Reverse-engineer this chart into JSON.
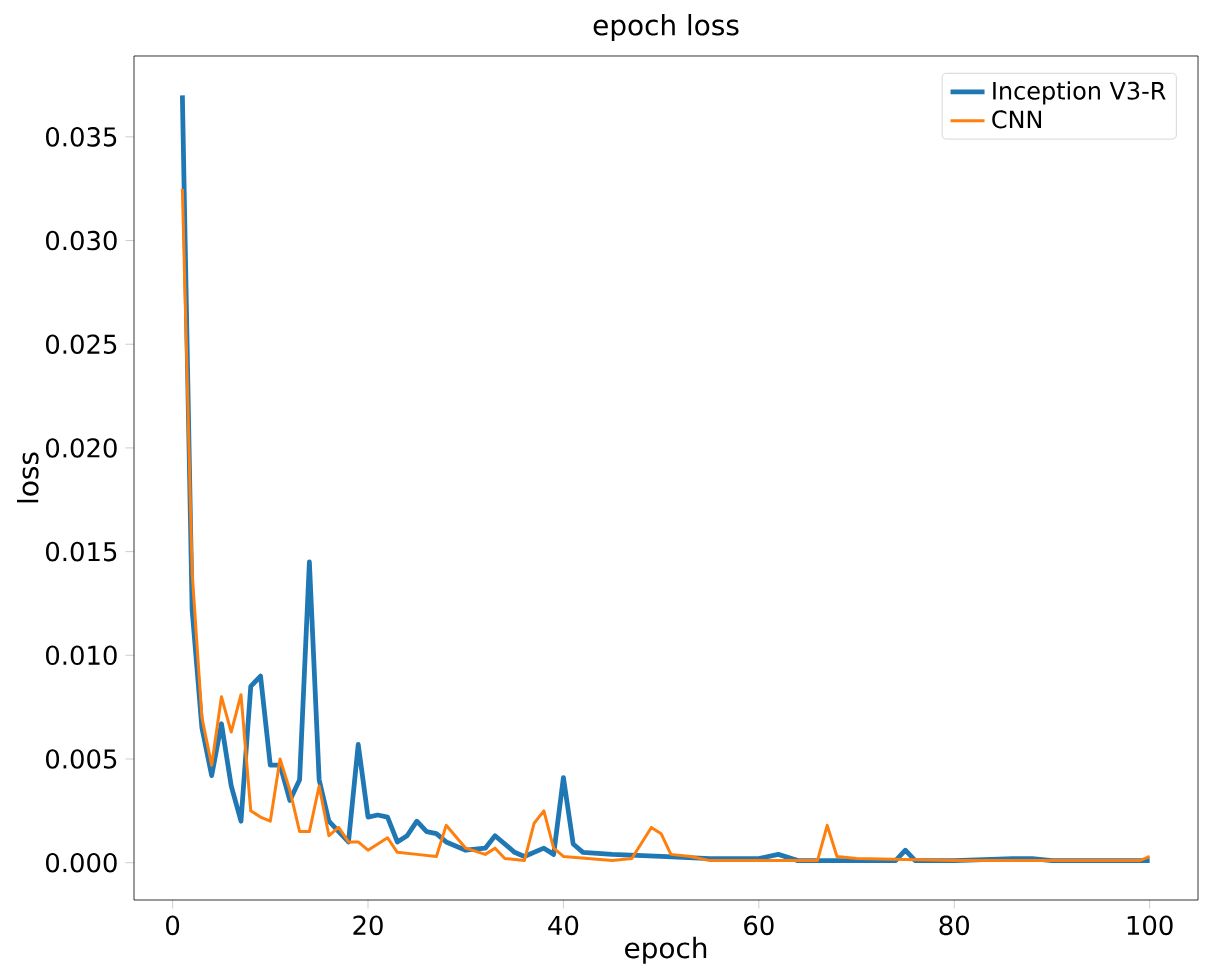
{
  "chart_data": {
    "type": "line",
    "title": "epoch loss",
    "xlabel": "epoch",
    "ylabel": "loss",
    "legend": "top right",
    "xlim": [
      -3.95,
      104.95
    ],
    "ylim": [
      -0.0018,
      0.0389
    ],
    "xticks": [
      0,
      20,
      40,
      60,
      80,
      100
    ],
    "yticks": [
      {
        "value": 0,
        "label": "0.000"
      },
      {
        "value": 0.005,
        "label": "0.005"
      },
      {
        "value": 0.01,
        "label": "0.010"
      },
      {
        "value": 0.015,
        "label": "0.015"
      },
      {
        "value": 0.02,
        "label": "0.020"
      },
      {
        "value": 0.025,
        "label": "0.025"
      },
      {
        "value": 0.03,
        "label": "0.030"
      },
      {
        "value": 0.035,
        "label": "0.035"
      }
    ],
    "series": [
      {
        "name": "Inception V3-R",
        "color": "#1f77b4",
        "x": [
          1,
          2,
          3,
          4,
          5,
          6,
          7,
          8,
          9,
          10,
          11,
          12,
          13,
          14,
          15,
          16,
          17,
          18,
          19,
          20,
          21,
          22,
          23,
          24,
          25,
          26,
          27,
          28,
          30,
          32,
          33,
          35,
          36,
          38,
          39,
          40,
          41,
          42,
          45,
          50,
          55,
          60,
          62,
          64,
          67,
          70,
          74,
          75,
          76,
          80,
          86,
          88,
          90,
          95,
          100
        ],
        "values": [
          0.037,
          0.0122,
          0.0065,
          0.0042,
          0.0067,
          0.0037,
          0.002,
          0.0085,
          0.009,
          0.0047,
          0.0047,
          0.003,
          0.004,
          0.0145,
          0.004,
          0.002,
          0.0015,
          0.001,
          0.0057,
          0.0022,
          0.0023,
          0.0022,
          0.001,
          0.0013,
          0.002,
          0.0015,
          0.0014,
          0.001,
          0.0006,
          0.0007,
          0.0013,
          0.0005,
          0.0003,
          0.0007,
          0.0004,
          0.0041,
          0.0009,
          0.0005,
          0.0004,
          0.0003,
          0.0002,
          0.0002,
          0.0004,
          0.0001,
          0.0001,
          0.0001,
          0.0001,
          0.0006,
          0.0001,
          0.0001,
          0.0002,
          0.0002,
          0.0001,
          0.0001,
          0.0001
        ]
      },
      {
        "name": "CNN",
        "color": "#ff7f0e",
        "x": [
          1,
          2,
          3,
          4,
          5,
          6,
          7,
          8,
          9,
          10,
          11,
          12,
          13,
          14,
          15,
          16,
          17,
          18,
          19,
          20,
          22,
          23,
          25,
          27,
          28,
          30,
          32,
          33,
          34,
          36,
          37,
          38,
          39,
          40,
          45,
          47,
          49,
          50,
          51,
          53,
          55,
          60,
          66,
          67,
          68,
          70,
          80,
          90,
          99,
          100
        ],
        "values": [
          0.0325,
          0.014,
          0.007,
          0.0047,
          0.008,
          0.0063,
          0.0081,
          0.0025,
          0.0022,
          0.002,
          0.005,
          0.0035,
          0.0015,
          0.0015,
          0.0037,
          0.0013,
          0.0017,
          0.001,
          0.001,
          0.0006,
          0.0012,
          0.0005,
          0.0004,
          0.0003,
          0.0018,
          0.0007,
          0.0004,
          0.0007,
          0.0002,
          0.0001,
          0.0019,
          0.0025,
          0.0007,
          0.0003,
          0.0001,
          0.0002,
          0.0017,
          0.0014,
          0.0004,
          0.0003,
          0.0001,
          0.0001,
          0.0001,
          0.0018,
          0.0003,
          0.0002,
          0.0001,
          0.0001,
          0.0001,
          0.0003
        ]
      }
    ]
  }
}
